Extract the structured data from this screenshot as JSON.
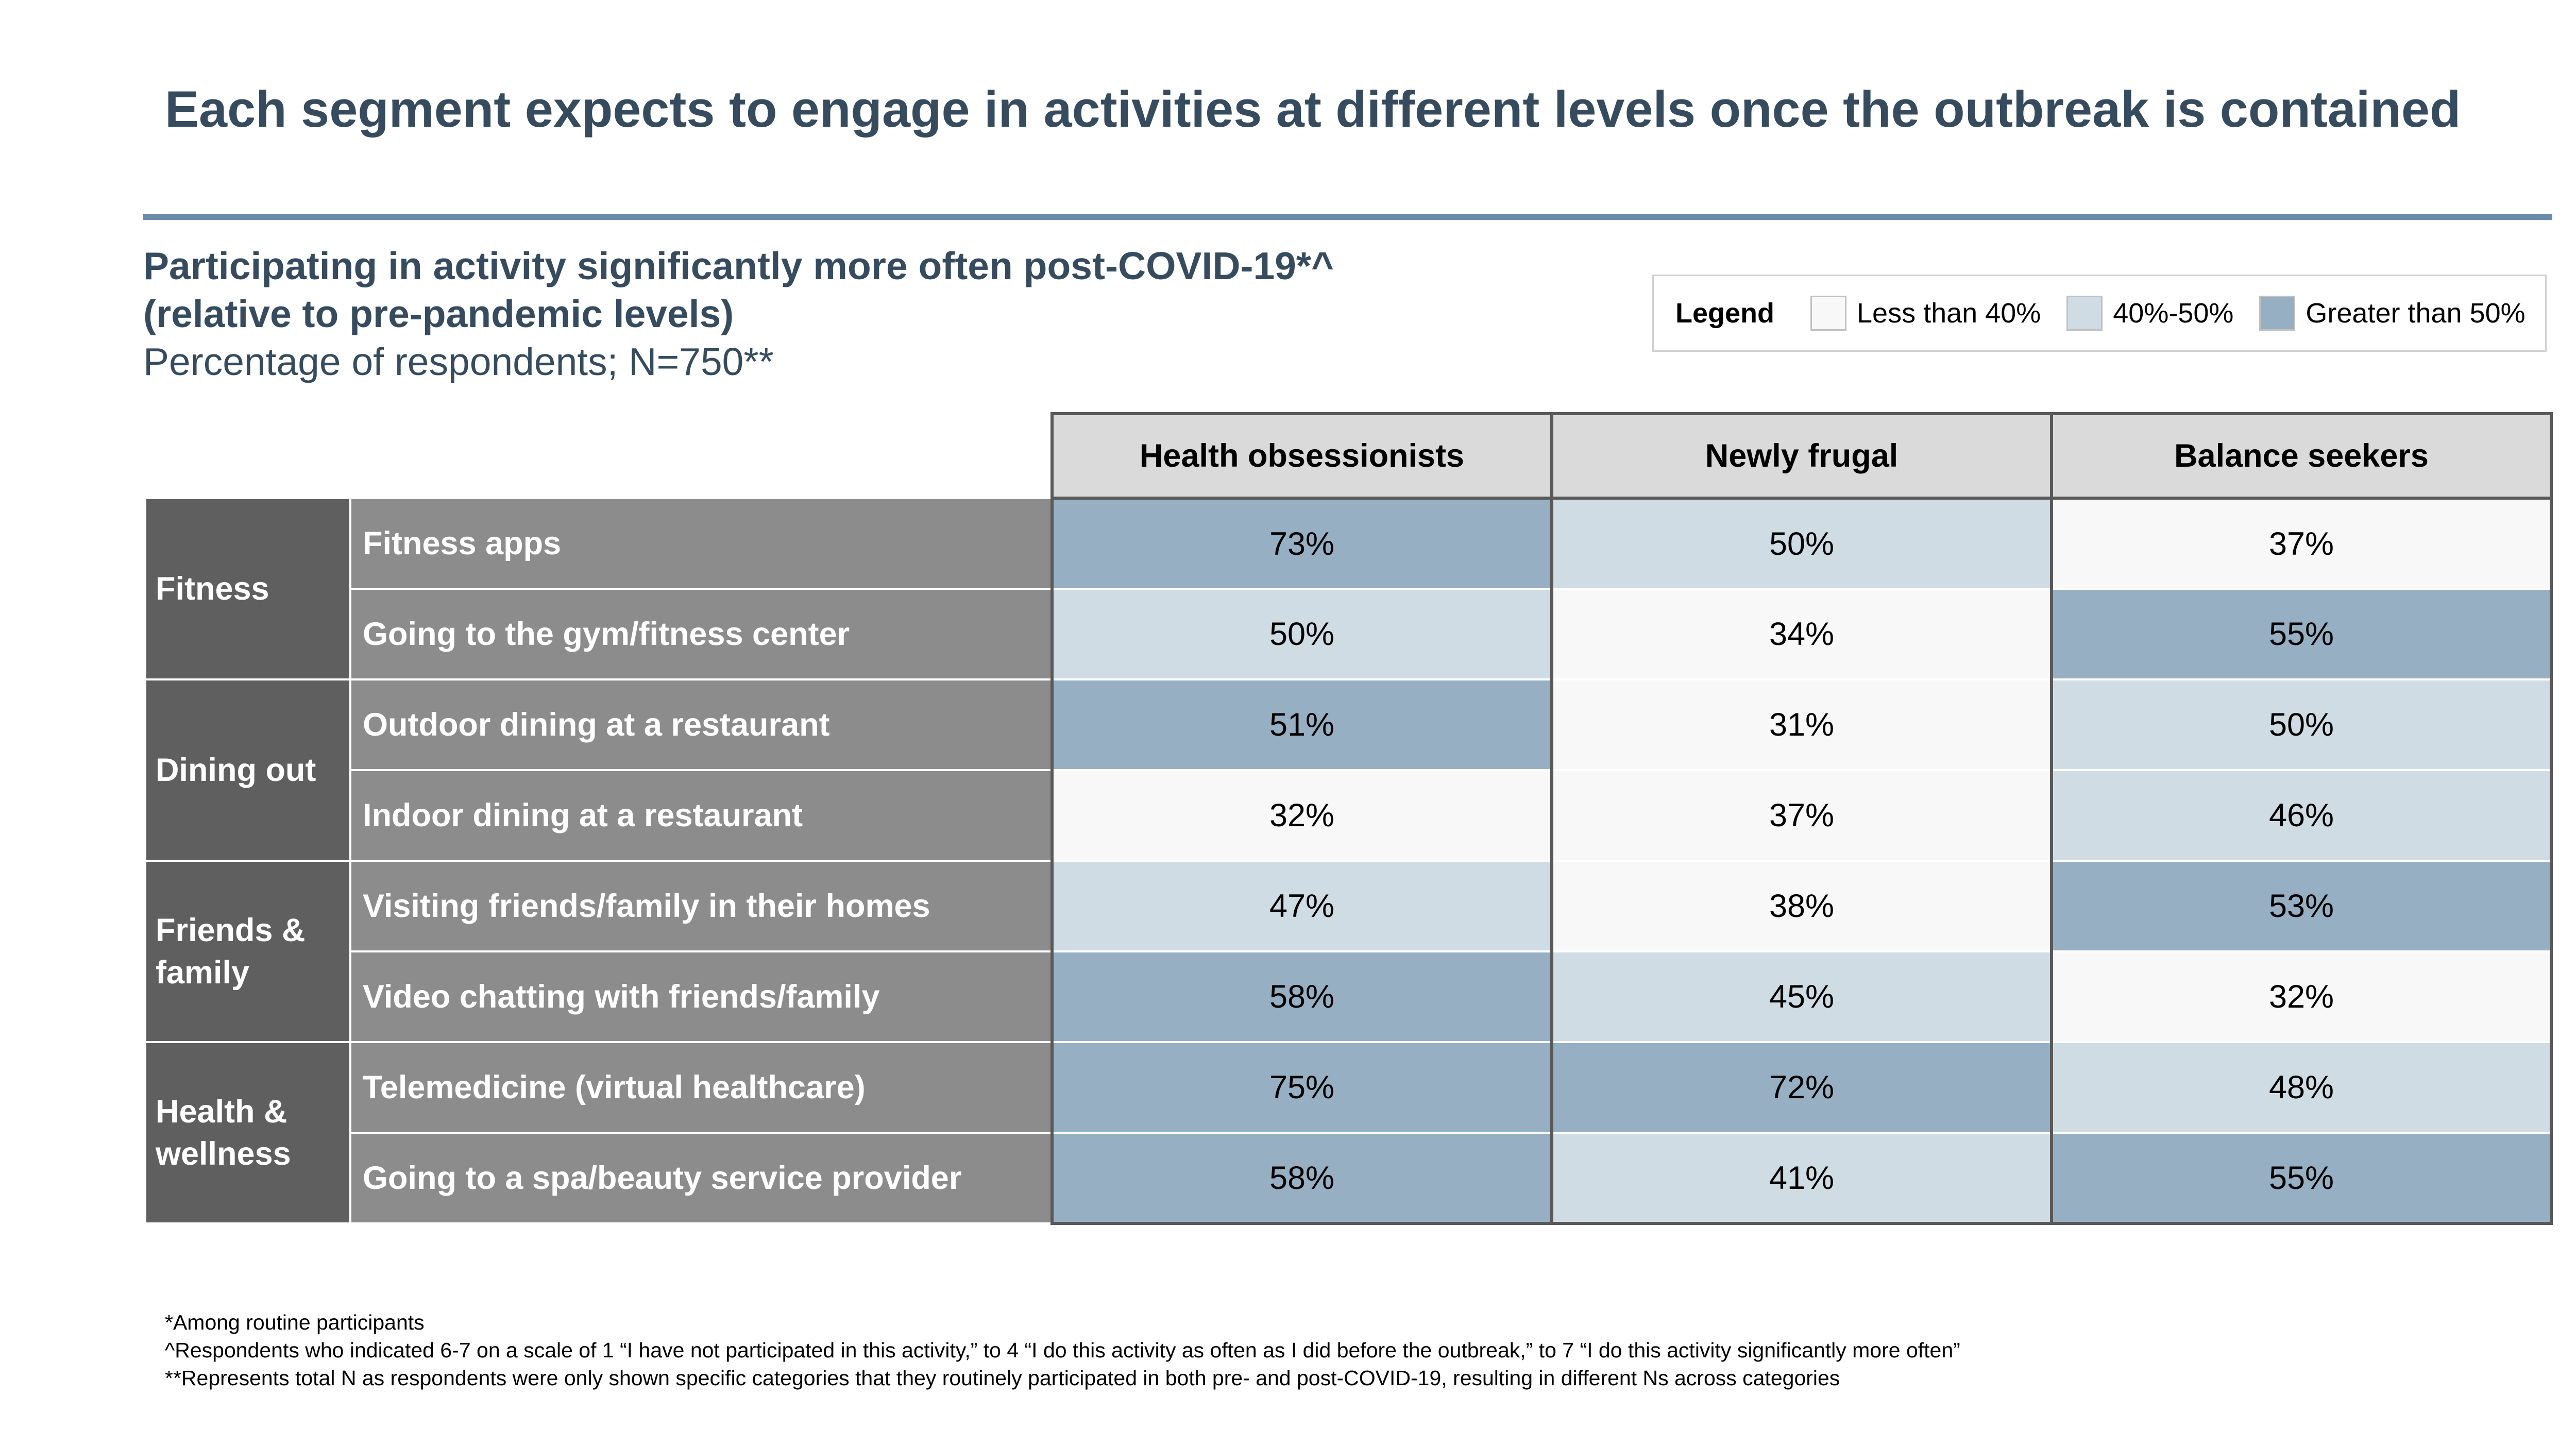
{
  "title": "Each segment expects to engage in activities at different levels once the outbreak is contained",
  "subtitle": {
    "line1": "Participating in activity significantly more often post-COVID-19*^",
    "line2": "(relative to pre-pandemic levels)",
    "line3": "Percentage of respondents; N=750**"
  },
  "legend": {
    "title": "Legend",
    "items": [
      {
        "label": "Less than 40%",
        "color": "#f8f8f8"
      },
      {
        "label": "40%-50%",
        "color": "#cfdce4"
      },
      {
        "label": "Greater than 50%",
        "color": "#96afc2"
      }
    ]
  },
  "chart_data": {
    "type": "table",
    "columns": [
      "Health obsessionists",
      "Newly frugal",
      "Balance seekers"
    ],
    "unit": "%",
    "groups": [
      {
        "name": "Fitness",
        "rows": [
          {
            "activity": "Fitness apps",
            "values": [
              73,
              50,
              37
            ]
          },
          {
            "activity": "Going to the gym/fitness center",
            "values": [
              50,
              34,
              55
            ]
          }
        ]
      },
      {
        "name": "Dining out",
        "rows": [
          {
            "activity": "Outdoor dining at a restaurant",
            "values": [
              51,
              31,
              50
            ]
          },
          {
            "activity": "Indoor dining at a restaurant",
            "values": [
              32,
              37,
              46
            ]
          }
        ]
      },
      {
        "name": "Friends & family",
        "rows": [
          {
            "activity": "Visiting friends/family in their homes",
            "values": [
              47,
              38,
              53
            ]
          },
          {
            "activity": "Video chatting with friends/family",
            "values": [
              58,
              45,
              32
            ]
          }
        ]
      },
      {
        "name": "Health & wellness",
        "rows": [
          {
            "activity": "Telemedicine (virtual healthcare)",
            "values": [
              75,
              72,
              48
            ]
          },
          {
            "activity": "Going to a spa/beauty service provider",
            "values": [
              58,
              41,
              55
            ]
          }
        ]
      }
    ]
  },
  "footnotes": [
    "*Among routine participants",
    "^Respondents who indicated 6-7 on a scale of 1 “I have not participated in this activity,” to 4 “I do this activity as often as I did before the outbreak,” to 7 “I do this activity significantly more often”",
    "**Represents total N as respondents were only shown specific categories that they routinely participated in both pre- and post-COVID-19, resulting in different Ns across categories"
  ]
}
